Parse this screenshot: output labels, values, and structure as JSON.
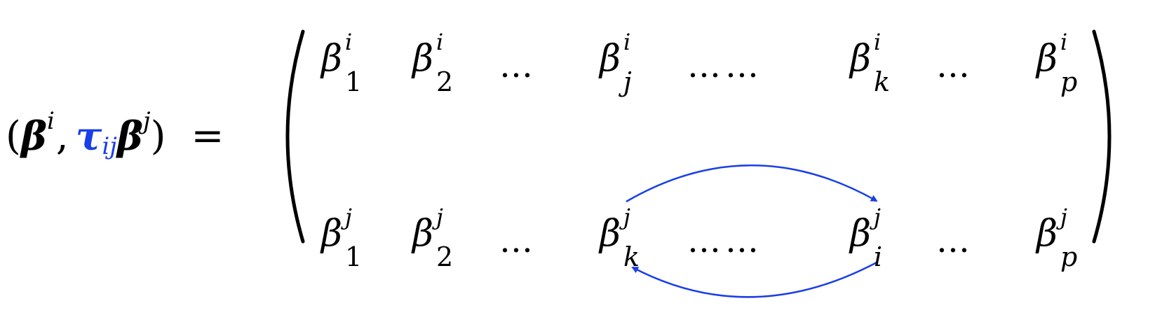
{
  "equation": {
    "lhs": {
      "open_paren": "(",
      "beta_bold": "β",
      "sup_i": "i",
      "comma": ",",
      "tau": "τ",
      "tau_sub": "ij",
      "beta_bold_2": "β",
      "sup_j": "j",
      "close_paren": ")",
      "equals": "="
    },
    "matrix": {
      "row1": [
        {
          "base": "β",
          "sup": "i",
          "sub": "1"
        },
        {
          "base": "β",
          "sup": "i",
          "sub": "2"
        },
        {
          "dots": "…"
        },
        {
          "base": "β",
          "sup": "i",
          "sub": "j"
        },
        {
          "dots": "……"
        },
        {
          "base": "β",
          "sup": "i",
          "sub": "k"
        },
        {
          "dots": "…"
        },
        {
          "base": "β",
          "sup": "i",
          "sub": "p"
        }
      ],
      "row2": [
        {
          "base": "β",
          "sup": "j",
          "sub": "1"
        },
        {
          "base": "β",
          "sup": "j",
          "sub": "2"
        },
        {
          "dots": "…"
        },
        {
          "base": "β",
          "sup": "j",
          "sub": "k"
        },
        {
          "dots": "……"
        },
        {
          "base": "β",
          "sup": "j",
          "sub": "i"
        },
        {
          "dots": "…"
        },
        {
          "base": "β",
          "sup": "j",
          "sub": "p"
        }
      ]
    }
  },
  "colors": {
    "text": "#000000",
    "accent_blue": "#1a3ee8"
  }
}
